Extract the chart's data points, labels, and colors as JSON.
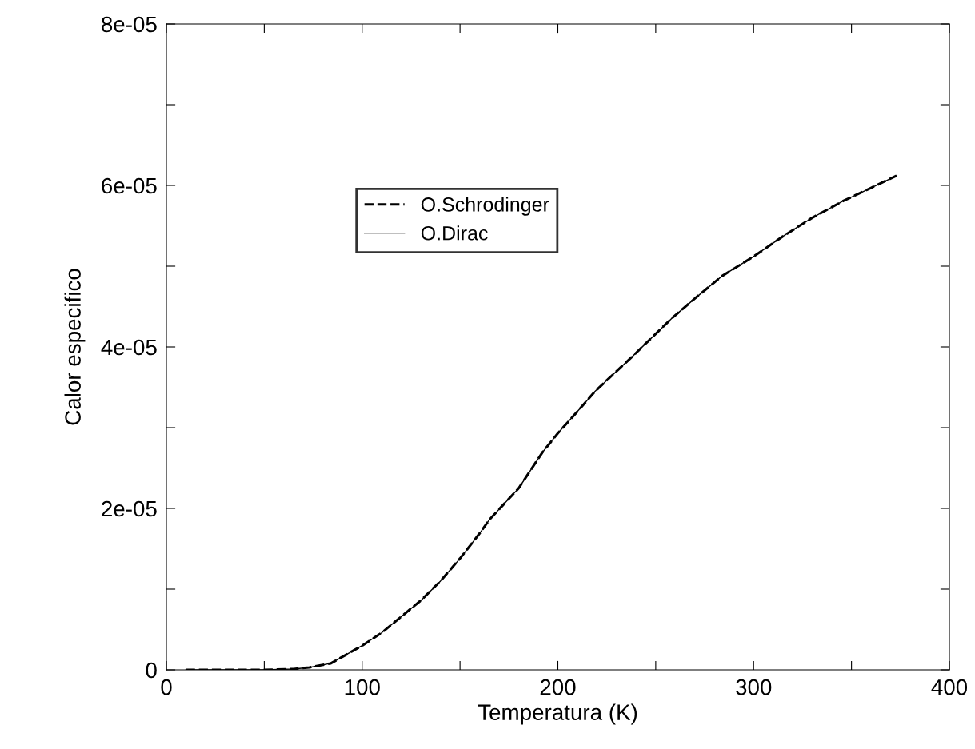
{
  "chart_data": {
    "type": "line",
    "xlabel": "Temperatura (K)",
    "ylabel": "Calor especifico",
    "x": [
      10,
      30,
      50,
      65,
      73,
      84,
      100,
      110,
      119,
      130,
      140,
      150,
      160,
      165,
      180,
      192,
      200,
      210,
      219,
      238,
      258,
      270,
      284,
      300,
      315,
      330,
      346,
      360,
      373
    ],
    "series": [
      {
        "name": "O.Schrodinger",
        "color": "#000000",
        "line_style": "dashed",
        "values": [
          0,
          0,
          0,
          1e-07,
          3e-07,
          8e-07,
          3e-06,
          4.6e-06,
          6.4e-06,
          8.6e-06,
          1.1e-05,
          1.38e-05,
          1.69e-05,
          1.86e-05,
          2.25e-05,
          2.69e-05,
          2.93e-05,
          3.2e-05,
          3.45e-05,
          3.88e-05,
          4.35e-05,
          4.6e-05,
          4.88e-05,
          5.12e-05,
          5.37e-05,
          5.6e-05,
          5.81e-05,
          5.97e-05,
          6.12e-05
        ]
      },
      {
        "name": "O.Dirac",
        "color": "#000000",
        "line_style": "solid",
        "values": [
          0,
          0,
          0,
          1e-07,
          3e-07,
          8e-07,
          3e-06,
          4.6e-06,
          6.4e-06,
          8.6e-06,
          1.1e-05,
          1.38e-05,
          1.69e-05,
          1.86e-05,
          2.25e-05,
          2.69e-05,
          2.93e-05,
          3.2e-05,
          3.45e-05,
          3.88e-05,
          4.35e-05,
          4.6e-05,
          4.88e-05,
          5.12e-05,
          5.37e-05,
          5.6e-05,
          5.81e-05,
          5.97e-05,
          6.12e-05
        ]
      }
    ],
    "xlim": [
      0,
      400
    ],
    "ylim": [
      0,
      8e-05
    ],
    "xticks": [
      0,
      {
        "value": 50,
        "label": null
      },
      100,
      {
        "value": 150,
        "label": null
      },
      200,
      {
        "value": 250,
        "label": null
      },
      300,
      {
        "value": 350,
        "label": null
      },
      400
    ],
    "yticks": [
      0,
      {
        "value": 1e-05,
        "label": null
      },
      {
        "value": 2e-05,
        "label": "2e-05"
      },
      {
        "value": 3e-05,
        "label": null
      },
      {
        "value": 4e-05,
        "label": "4e-05"
      },
      {
        "value": 5e-05,
        "label": null
      },
      {
        "value": 6e-05,
        "label": "6e-05"
      },
      {
        "value": 7e-05,
        "label": null
      },
      {
        "value": 8e-05,
        "label": "8e-05"
      }
    ],
    "legend": "top left",
    "grid": false,
    "marker": "none"
  }
}
